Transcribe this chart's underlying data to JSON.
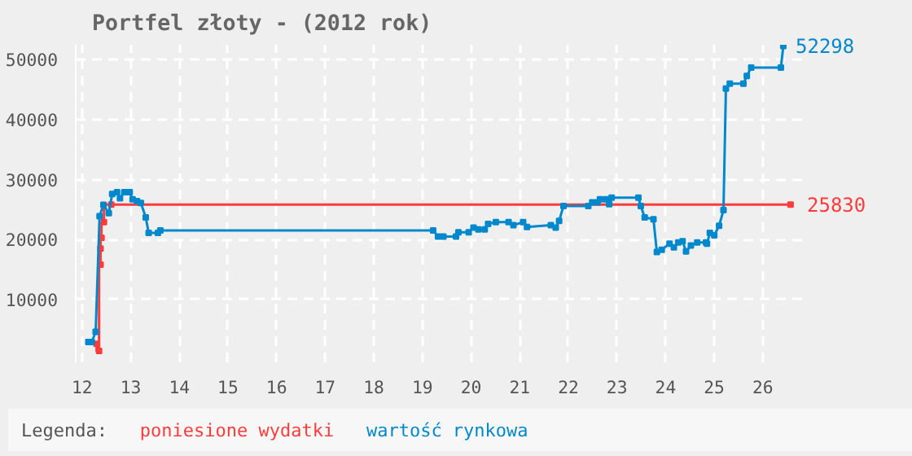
{
  "chart_data": {
    "type": "line",
    "title": "Portfel złoty - (2012 rok)",
    "legend_title": "Legenda:",
    "legend": "bottom",
    "grid": true,
    "marker": "square",
    "line_style": "solid",
    "xlim": [
      11.87,
      26.94
    ],
    "xticks": [
      12,
      13,
      14,
      15,
      16,
      17,
      18,
      19,
      20,
      21,
      22,
      23,
      24,
      25,
      26
    ],
    "ylim": [
      -500,
      52500
    ],
    "yticks": [
      10000,
      20000,
      30000,
      40000,
      50000
    ],
    "series": [
      {
        "name": "poniesione wydatki",
        "color": "#ff3b3b",
        "type": "step",
        "x": [
          12.3,
          12.35,
          12.38,
          12.38,
          12.4,
          12.45,
          12.6,
          26.57
        ],
        "values": [
          2600,
          1400,
          15800,
          18500,
          20300,
          22900,
          25830,
          25830
        ]
      },
      {
        "name": "wartość rynkowa",
        "color": "#0088cc",
        "x": [
          12.13,
          12.2,
          12.28,
          12.36,
          12.44,
          12.55,
          12.62,
          12.72,
          12.78,
          12.87,
          12.98,
          13.04,
          13.13,
          13.21,
          13.31,
          13.37,
          13.56,
          13.61,
          19.22,
          19.32,
          19.43,
          19.69,
          19.74,
          19.95,
          20.05,
          20.15,
          20.28,
          20.35,
          20.51,
          20.77,
          20.87,
          21.07,
          21.15,
          21.64,
          21.74,
          21.81,
          21.9,
          22.41,
          22.49,
          22.6,
          22.65,
          22.77,
          22.84,
          22.89,
          23.44,
          23.49,
          23.57,
          23.75,
          23.82,
          23.92,
          24.08,
          24.17,
          24.26,
          24.35,
          24.42,
          24.52,
          24.65,
          24.83,
          24.85,
          24.91,
          25.0,
          25.1,
          25.19,
          25.24,
          25.32,
          25.6,
          25.67,
          25.76,
          26.37,
          26.42
        ],
        "values": [
          2900,
          2900,
          4600,
          23900,
          25800,
          24400,
          27600,
          27900,
          26900,
          27900,
          27900,
          26700,
          26400,
          26100,
          23700,
          21100,
          21100,
          21500,
          21500,
          20500,
          20500,
          20500,
          21200,
          21200,
          22000,
          21700,
          21700,
          22600,
          22900,
          22900,
          22400,
          22900,
          22100,
          22400,
          22000,
          23100,
          25600,
          25600,
          26200,
          26200,
          26700,
          26700,
          25900,
          27000,
          27000,
          25600,
          23700,
          23400,
          17900,
          18300,
          19300,
          18700,
          19500,
          19700,
          18000,
          19000,
          19500,
          19500,
          19300,
          21100,
          20700,
          22300,
          24900,
          45200,
          46000,
          46000,
          47300,
          48700,
          48700,
          52298
        ]
      }
    ],
    "annotations": [
      {
        "text": "25830",
        "x": 26.57,
        "y": 25830
      },
      {
        "text": "52298",
        "x": 26.42,
        "y": 52298
      }
    ]
  }
}
